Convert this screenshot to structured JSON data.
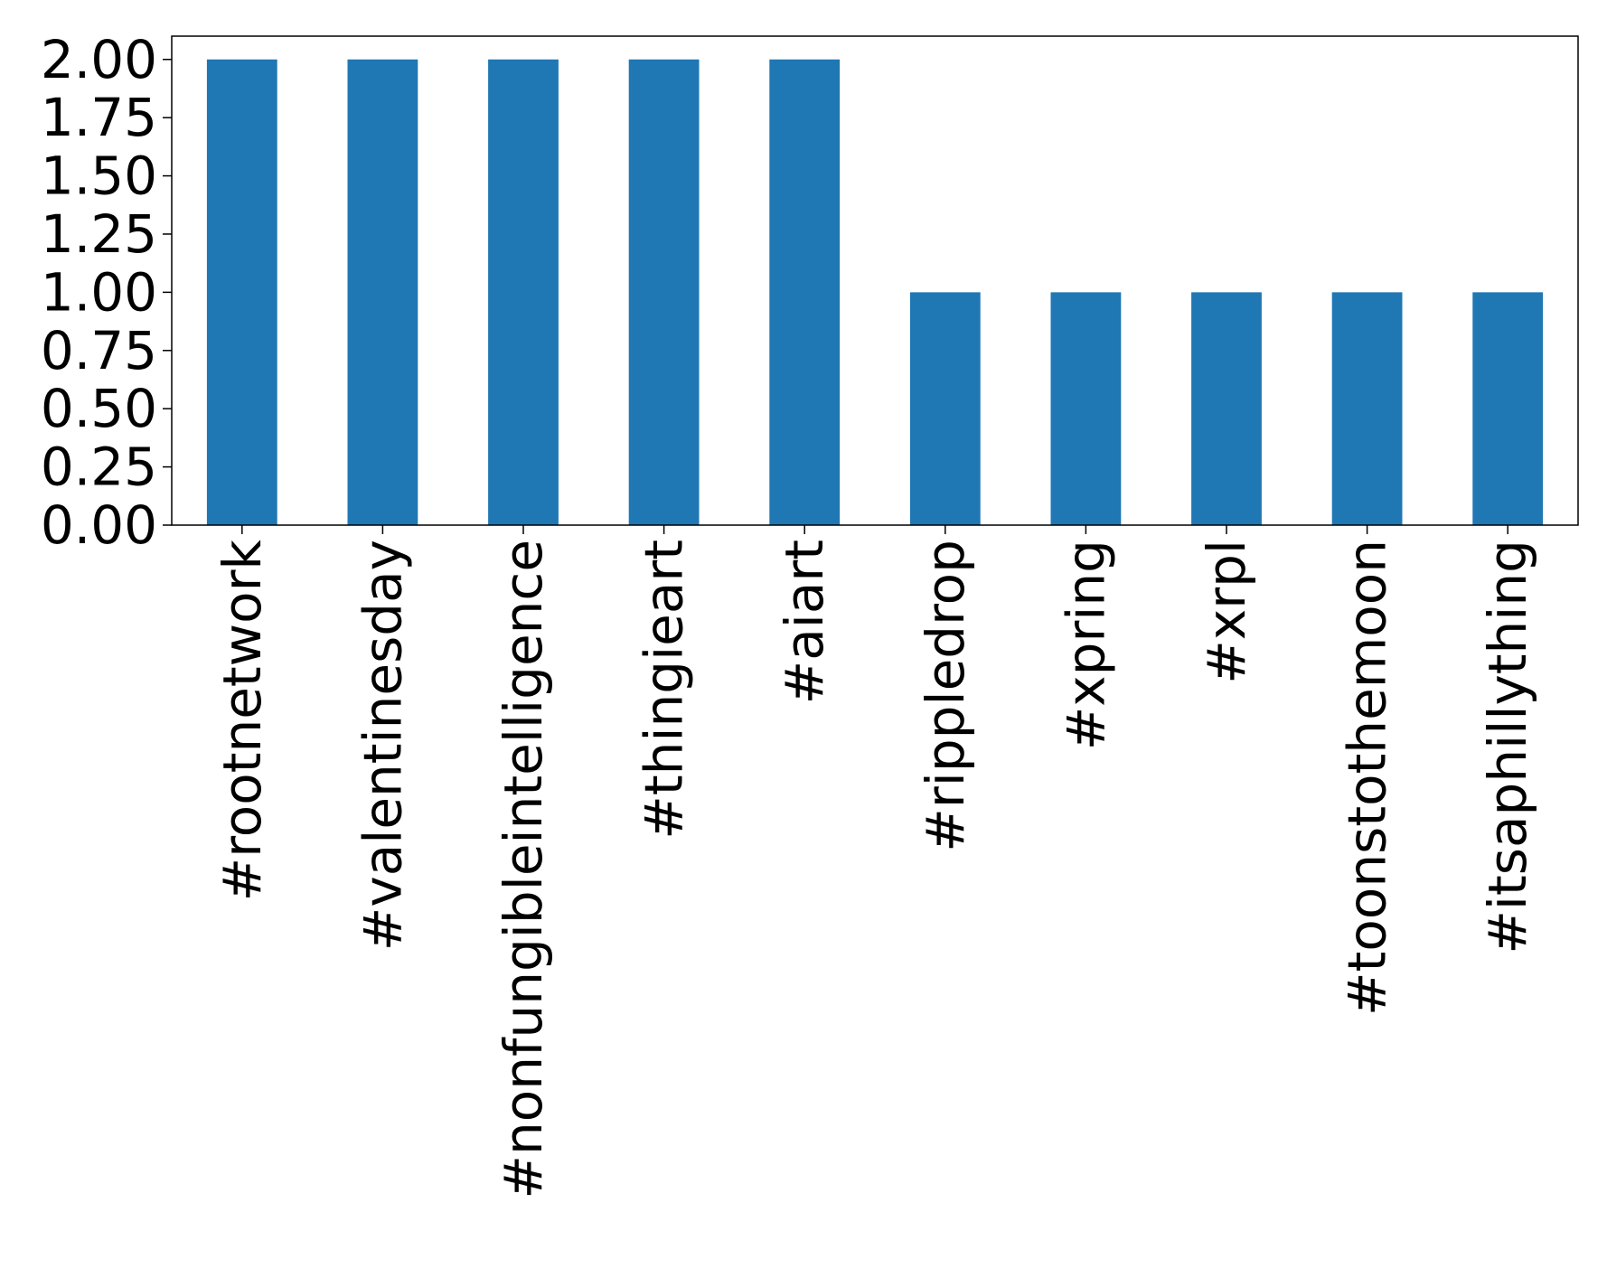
{
  "chart_data": {
    "type": "bar",
    "title": "",
    "xlabel": "",
    "ylabel": "",
    "categories": [
      "#rootnetwork",
      "#valentinesday",
      "#nonfungibleintelligence",
      "#thingieart",
      "#aiart",
      "#rippledrop",
      "#xpring",
      "#xrpl",
      "#toonstothemoon",
      "#itsaphillything"
    ],
    "values": [
      2,
      2,
      2,
      2,
      2,
      1,
      1,
      1,
      1,
      1
    ],
    "ylim": [
      0,
      2.1
    ],
    "yticks": [
      "0.00",
      "0.25",
      "0.50",
      "0.75",
      "1.00",
      "1.25",
      "1.50",
      "1.75",
      "2.00"
    ],
    "yticks_values": [
      0,
      0.25,
      0.5,
      0.75,
      1.0,
      1.25,
      1.5,
      1.75,
      2.0
    ],
    "bar_color": "#1f77b4",
    "grid": false,
    "legend": "none"
  }
}
